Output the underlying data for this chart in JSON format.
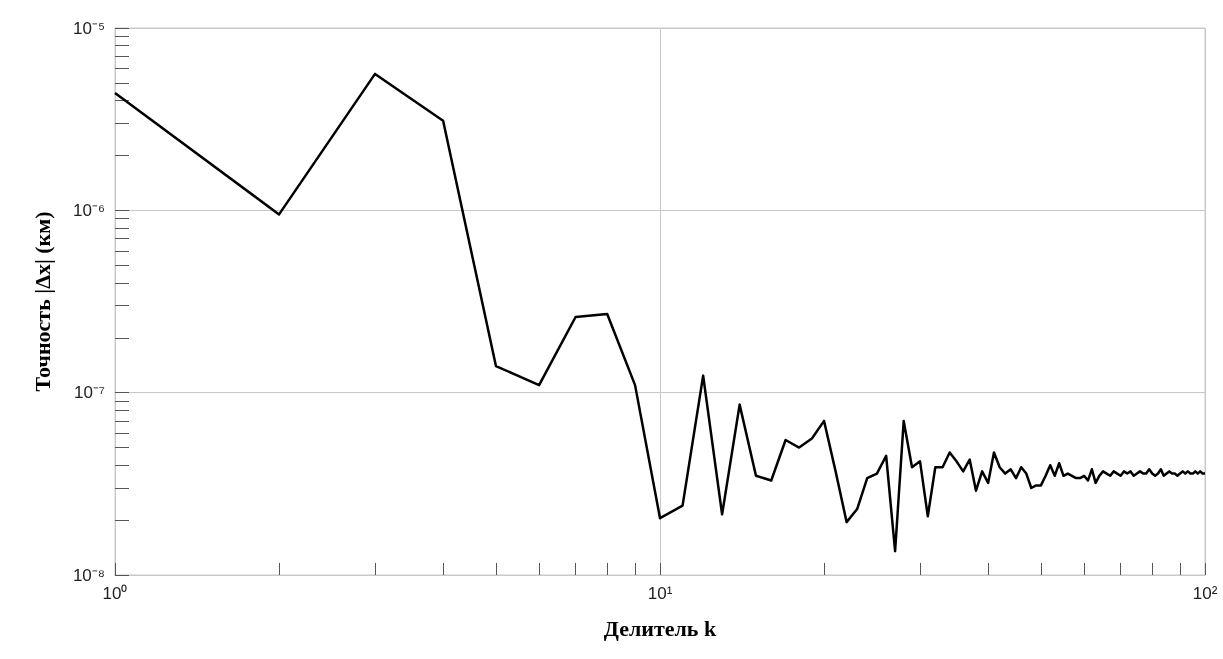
{
  "chart_data": {
    "type": "line",
    "xlabel": "Делитель k",
    "ylabel": "Точность |Δx| (км)",
    "log": "xy",
    "grid": true,
    "marker": "none",
    "line_style": "solid",
    "x": [
      1,
      2,
      3,
      4,
      5,
      6,
      7,
      8,
      9,
      10,
      11,
      12,
      13,
      14,
      15,
      16,
      17,
      18,
      19,
      20,
      21,
      22,
      23,
      24,
      25,
      26,
      27,
      28,
      29,
      30,
      31,
      32,
      33,
      34,
      35,
      36,
      37,
      38,
      39,
      40,
      41,
      42,
      43,
      44,
      45,
      46,
      47,
      48,
      49,
      50,
      51,
      52,
      53,
      54,
      55,
      56,
      57,
      58,
      59,
      60,
      61,
      62,
      63,
      64,
      65,
      66,
      67,
      68,
      69,
      70,
      71,
      72,
      73,
      74,
      75,
      76,
      77,
      78,
      79,
      80,
      81,
      82,
      83,
      84,
      85,
      86,
      87,
      88,
      89,
      90,
      91,
      92,
      93,
      94,
      95,
      96,
      97,
      98,
      99,
      100
    ],
    "series": [
      {
        "color": "#000000",
        "values": [
          4.4e-06,
          9.5e-07,
          5.6e-06,
          3.1e-06,
          1.4e-07,
          1.1e-07,
          2.6e-07,
          2.7e-07,
          1.1e-07,
          2.05e-08,
          2.4e-08,
          1.24e-07,
          2.15e-08,
          8.6e-08,
          3.5e-08,
          3.3e-08,
          5.5e-08,
          5e-08,
          5.6e-08,
          7e-08,
          3.7e-08,
          1.95e-08,
          2.3e-08,
          3.4e-08,
          3.6e-08,
          4.5e-08,
          1.35e-08,
          7e-08,
          3.9e-08,
          4.2e-08,
          2.1e-08,
          3.9e-08,
          3.9e-08,
          4.7e-08,
          4.2e-08,
          3.7e-08,
          4.3e-08,
          2.9e-08,
          3.7e-08,
          3.2e-08,
          4.7e-08,
          3.9e-08,
          3.6e-08,
          3.8e-08,
          3.4e-08,
          3.9e-08,
          3.6e-08,
          3e-08,
          3.1e-08,
          3.1e-08,
          3.5e-08,
          4e-08,
          3.5e-08,
          4.1e-08,
          3.5e-08,
          3.6e-08,
          3.5e-08,
          3.4e-08,
          3.4e-08,
          3.5e-08,
          3.3e-08,
          3.8e-08,
          3.2e-08,
          3.5e-08,
          3.7e-08,
          3.6e-08,
          3.5e-08,
          3.7e-08,
          3.6e-08,
          3.5e-08,
          3.7e-08,
          3.6e-08,
          3.7e-08,
          3.5e-08,
          3.6e-08,
          3.7e-08,
          3.6e-08,
          3.6e-08,
          3.8e-08,
          3.6e-08,
          3.5e-08,
          3.6e-08,
          3.8e-08,
          3.5e-08,
          3.6e-08,
          3.7e-08,
          3.6e-08,
          3.6e-08,
          3.5e-08,
          3.6e-08,
          3.7e-08,
          3.6e-08,
          3.7e-08,
          3.6e-08,
          3.6e-08,
          3.7e-08,
          3.6e-08,
          3.7e-08,
          3.6e-08,
          3.6e-08
        ]
      }
    ],
    "xlim": [
      1,
      100
    ],
    "xticks": [
      {
        "value": 1,
        "label": "10⁰"
      },
      {
        "value": 2,
        "label": null
      },
      {
        "value": 3,
        "label": null
      },
      {
        "value": 4,
        "label": null
      },
      {
        "value": 5,
        "label": null
      },
      {
        "value": 6,
        "label": null
      },
      {
        "value": 7,
        "label": null
      },
      {
        "value": 8,
        "label": null
      },
      {
        "value": 9,
        "label": null
      },
      {
        "value": 10,
        "label": "10¹"
      },
      {
        "value": 20,
        "label": null
      },
      {
        "value": 30,
        "label": null
      },
      {
        "value": 40,
        "label": null
      },
      {
        "value": 50,
        "label": null
      },
      {
        "value": 60,
        "label": null
      },
      {
        "value": 70,
        "label": null
      },
      {
        "value": 80,
        "label": null
      },
      {
        "value": 90,
        "label": null
      },
      {
        "value": 100,
        "label": "10²"
      }
    ],
    "ylim": [
      1e-08,
      1e-05
    ],
    "yticks": [
      {
        "value": 1e-08,
        "label": "10⁻⁸"
      },
      {
        "value": 2e-08,
        "label": null
      },
      {
        "value": 3e-08,
        "label": null
      },
      {
        "value": 4e-08,
        "label": null
      },
      {
        "value": 5e-08,
        "label": null
      },
      {
        "value": 6e-08,
        "label": null
      },
      {
        "value": 7e-08,
        "label": null
      },
      {
        "value": 8e-08,
        "label": null
      },
      {
        "value": 9e-08,
        "label": null
      },
      {
        "value": 1e-07,
        "label": "10⁻⁷"
      },
      {
        "value": 2e-07,
        "label": null
      },
      {
        "value": 3e-07,
        "label": null
      },
      {
        "value": 4e-07,
        "label": null
      },
      {
        "value": 5e-07,
        "label": null
      },
      {
        "value": 6e-07,
        "label": null
      },
      {
        "value": 7e-07,
        "label": null
      },
      {
        "value": 8e-07,
        "label": null
      },
      {
        "value": 9e-07,
        "label": null
      },
      {
        "value": 1e-06,
        "label": "10⁻⁶"
      },
      {
        "value": 2e-06,
        "label": null
      },
      {
        "value": 3e-06,
        "label": null
      },
      {
        "value": 4e-06,
        "label": null
      },
      {
        "value": 5e-06,
        "label": null
      },
      {
        "value": 6e-06,
        "label": null
      },
      {
        "value": 7e-06,
        "label": null
      },
      {
        "value": 8e-06,
        "label": null
      },
      {
        "value": 9e-06,
        "label": null
      },
      {
        "value": 1e-05,
        "label": "10⁻⁵"
      }
    ]
  }
}
